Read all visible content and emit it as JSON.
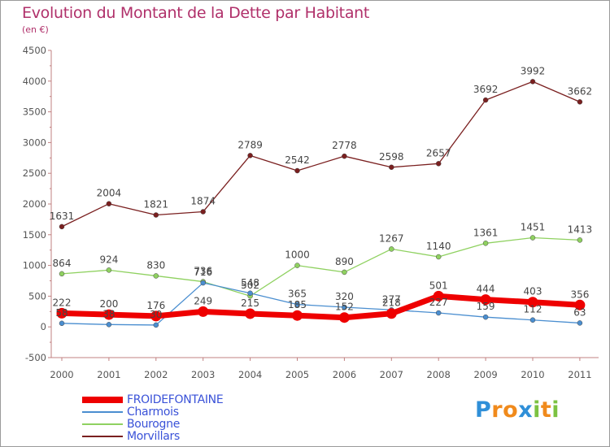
{
  "header": {
    "title": "Evolution du Montant de la Dette par Habitant",
    "subtitle": "(en €)"
  },
  "chart_data": {
    "type": "line",
    "title": "Evolution du Montant de la Dette par Habitant",
    "ylabel": "(en €)",
    "xlabel": "",
    "ylim": [
      -500,
      4500
    ],
    "y_ticks": [
      -500,
      0,
      500,
      1000,
      1500,
      2000,
      2500,
      3000,
      3500,
      4000,
      4500
    ],
    "categories": [
      "2000",
      "2001",
      "2002",
      "2003",
      "2004",
      "2005",
      "2006",
      "2007",
      "2008",
      "2009",
      "2010",
      "2011"
    ],
    "grid": false,
    "legend_position": "bottom-left",
    "series": [
      {
        "name": "Morvillars",
        "color": "#7a1f1f",
        "values": [
          1631,
          2004,
          1821,
          1874,
          2789,
          2542,
          2778,
          2598,
          2657,
          3692,
          3992,
          3662
        ]
      },
      {
        "name": "Bourogne",
        "color": "#8fd160",
        "values": [
          864,
          924,
          830,
          736,
          502,
          1000,
          890,
          1267,
          1140,
          1361,
          1451,
          1413
        ]
      },
      {
        "name": "Charmois",
        "color": "#4a8ed0",
        "values": [
          58,
          38,
          30,
          716,
          548,
          365,
          320,
          277,
          227,
          159,
          112,
          63
        ]
      },
      {
        "name": "FROIDEFONTAINE",
        "color": "#ee0000",
        "values": [
          222,
          200,
          176,
          249,
          215,
          185,
          152,
          218,
          501,
          444,
          403,
          356
        ]
      }
    ]
  },
  "legend": {
    "items": [
      {
        "label": "FROIDEFONTAINE",
        "color": "#ee0000"
      },
      {
        "label": "Charmois",
        "color": "#4a8ed0"
      },
      {
        "label": "Bourogne",
        "color": "#8fd160"
      },
      {
        "label": "Morvillars",
        "color": "#7a1f1f"
      }
    ]
  },
  "logo": {
    "letters": [
      {
        "char": "P",
        "color": "#2f8fd8"
      },
      {
        "char": "r",
        "color": "#f08a1c"
      },
      {
        "char": "o",
        "color": "#f08a1c"
      },
      {
        "char": "x",
        "color": "#2f8fd8"
      },
      {
        "char": "i",
        "color": "#7cc242"
      },
      {
        "char": "t",
        "color": "#f08a1c"
      },
      {
        "char": "i",
        "color": "#7cc242"
      }
    ]
  }
}
